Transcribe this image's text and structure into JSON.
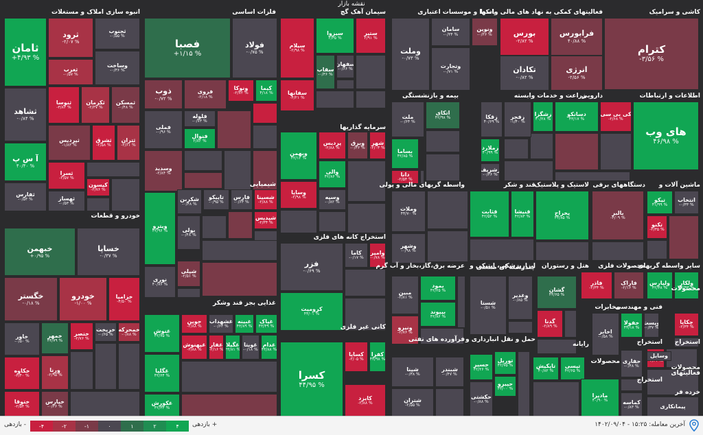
{
  "map_title": "نقشه بازار",
  "sectors": {
    "kashi": "کاشی و سرامیک",
    "faaliat_malli": "فعالیتهای کمکی به نهاد های مالی واسط",
    "bankha": "بانکها و موسسات اعتباری",
    "siman": "سیمان آهک گچ",
    "felezat": "فلزات اساسی",
    "anbouh": "انبوه سازی املاک و مستغلات",
    "bime": "بیمه و بازنشستگی",
    "zeraat": "زراعت و خدمات وابسته",
    "daroei": "دارویی",
    "ettelaat": "اطلاعات و ارتباطات",
    "sarmaye": "سرمایه گذاریها",
    "vaseteh": "واسطه گریهای مالی و پولی",
    "ghand": "قند و شکر",
    "lastik": "لاستیک و پلاستیک",
    "dastgah": "دستگاههای برقی",
    "mashinalat": "ماشین آلات و",
    "shimiaei": "شیمیایی",
    "khodro": "خودرو و قطعات",
    "estekhraj_kane": "استخراج کانه های فلزی",
    "arze_bargh": "عرضه برق،گاز،بخار و آب گرم",
    "abzar": "ابزارپزشکی، اپتیکی و",
    "chandreshte": "چندرشته ای صنعتی",
    "hotel": "هتل و رستوران",
    "mahsoulat_felezi": "محصولات فلزی",
    "saier_vaseteh": "سایر واسطه گریهای",
    "ghazaei": "غذایی بجز قند وشکر",
    "mokhaberat": "مخابرات",
    "fanni": "فنی و مهندسی",
    "mahsoulat": "محصولات",
    "kani_gheir": "کانی غیر فلزی",
    "faravarde": "فرآورده های نفتی",
    "haml": "حمل و نقل انبارداری و",
    "rayane": "رایانه",
    "mahsoulat2": "محصولات",
    "estekhraj1": "استخراج",
    "estekhraj2": "استخراج",
    "estekhraj3": "استخراج",
    "faaliatha": "فعالیتهای",
    "khordeh": "خرده فر",
    "mahsoulat3": "محصولات"
  },
  "tiles": {
    "ketram": {
      "sym": "کترام",
      "pct": "-۳/۵۶ %"
    },
    "faraboors": {
      "sym": "فرابورس",
      "pct": "۴۰/۸۸ %"
    },
    "boors": {
      "sym": "بورس",
      "pct": "-۲/۸۲ %"
    },
    "anrezi": {
      "sym": "انرژی",
      "pct": "-۲/۵۶ %"
    },
    "tekadan": {
      "sym": "تکادان",
      "pct": "-۰/۸۲ %"
    },
    "vanovin": {
      "sym": "ونوین",
      "pct": "-۰/۳۶ %"
    },
    "saman": {
      "sym": "سامان",
      "pct": "-۰/۳۴ %"
    },
    "vamellat": {
      "sym": "وملت",
      "pct": "-۰/۷۳ %"
    },
    "vtejarat": {
      "sym": "وتجارت",
      "pct": "-۰/۷۱ %"
    },
    "saniir": {
      "sym": "ستیر",
      "pct": "۲/۹۱ %"
    },
    "sizza": {
      "sym": "سیزوا",
      "pct": "۲/۳۵ %"
    },
    "sipam": {
      "sym": "سیلام",
      "pct": "-۲/۹۸ %"
    },
    "saghar": {
      "sym": "سقاب",
      "pct": "-۰/۳۶ %"
    },
    "sefahan": {
      "sym": "سفهان",
      "pct": "-۰/۶۶ %"
    },
    "sefanha": {
      "sym": "سفانها",
      "pct": "-۴/۲۱ %"
    },
    "fesapa": {
      "sym": "فصبا",
      "pct": "+۱/۱۵ %"
    },
    "foolad": {
      "sym": "فولاد",
      "pct": "-۰/۷۵ %"
    },
    "zob": {
      "sym": "ذوب",
      "pct": "-۰/۷۲ %"
    },
    "foroozi": {
      "sym": "فروی",
      "pct": "-۲/۱۸ %"
    },
    "vanoka": {
      "sym": "ونوکا",
      "pct": "-۲/۷۲ %"
    },
    "kima": {
      "sym": "کیما",
      "pct": "۴/۱۸ %"
    },
    "flooleh": {
      "sym": "فلوله",
      "pct": "-۰/۷۳ %"
    },
    "fooolal": {
      "sym": "فنوال",
      "pct": "۲/۸۲ %"
    },
    "felezi": {
      "sym": "فملی",
      "pct": "-۰/۹۶ %"
    },
    "vasdid": {
      "sym": "وسدید",
      "pct": "-۲/۸۴ %"
    },
    "saman2": {
      "sym": "ثامان",
      "pct": "+۴/۹۳ %"
    },
    "tarood": {
      "sym": "ثرود",
      "pct": "-۲/۰۷ %"
    },
    "tajnoob": {
      "sym": "ثجنوب",
      "pct": "-۰/۵۵ %"
    },
    "taghrab": {
      "sym": "ثغرب",
      "pct": "-۰/۵۷ %"
    },
    "vasakht": {
      "sym": "وساخت",
      "pct": "-۰/۳۶ %"
    },
    "teshahd": {
      "sym": "ثشاهد",
      "pct": "-۰/۸۴ %"
    },
    "tanosa": {
      "sym": "ثنوسا",
      "pct": "-۳/۸۳ %"
    },
    "tkerman": {
      "sym": "ثکرمان",
      "pct": "-۲/۳۷ %"
    },
    "tamaskan": {
      "sym": "ثمسکن",
      "pct": "-۰/۴۸ %"
    },
    "tpardis": {
      "sym": "ثپردیس",
      "pct": "-۱/۸۳ %"
    },
    "tashragh": {
      "sym": "ثشرق",
      "pct": "-۲/۵۸ %"
    },
    "tetran": {
      "sym": "ثتران",
      "pct": "-۲/۶۱ %"
    },
    "asp": {
      "sym": "آ س پ",
      "pct": "۴۰/۴۰ %"
    },
    "tesra": {
      "sym": "ثسرا",
      "pct": "-۲/۵۷ %"
    },
    "kisvan": {
      "sym": "کیسون",
      "pct": "-۲/۷۶ %"
    },
    "tafars": {
      "sym": "ثفارس",
      "pct": "-۰/۵۳ %"
    },
    "tehasaz": {
      "sym": "ثهساز",
      "pct": "-۰/۵۳ %"
    },
    "khbahman": {
      "sym": "خبهمن",
      "pct": "+۰/۹۵ %"
    },
    "khsapa": {
      "sym": "خساپا",
      "pct": "-۰/۳۷ %"
    },
    "khgostar": {
      "sym": "خگستر",
      "pct": "-۰/۱۸ %"
    },
    "khodro": {
      "sym": "خودرو",
      "pct": "-۱/۰۰ %"
    },
    "khzamia": {
      "sym": "خزامیا",
      "pct": "-۴/۵۰ %"
    },
    "khavar": {
      "sym": "خاور",
      "pct": "-۰/۵۰ %"
    },
    "khamhr": {
      "sym": "خمهر",
      "pct": "۴۳/۷۹ %"
    },
    "khatsar": {
      "sym": "ختصر",
      "pct": "-۲/۷۶ %"
    },
    "kharikht": {
      "sym": "خریخت",
      "pct": "-۰/۶۵ %"
    },
    "khamhreh": {
      "sym": "خمحرکه",
      "pct": "-۰/۸۸ %"
    },
    "khakoosh": {
      "sym": "خکاوه",
      "pct": "-۳/۴۰ %"
    },
    "vrena": {
      "sym": "ورنا",
      "pct": "-۲/۹۵ %"
    },
    "khtooghi": {
      "sym": "ختوقا",
      "pct": "-۲/۵۴ %"
    },
    "khpars": {
      "sym": "خپارس",
      "pct": "-۰/۳۶ %"
    },
    "malat": {
      "sym": "ملت",
      "pct": "-۰/۶۴ %"
    },
    "atkai": {
      "sym": "اتکای",
      "pct": "۴۲/۹۸ %"
    },
    "basma": {
      "sym": "بساما",
      "pct": "۴۲/۸۵ %"
    },
    "dana": {
      "sym": "دانا",
      "pct": "-۲/۵۴ %"
    },
    "zagaka": {
      "sym": "زقکا",
      "pct": "۴۰/۶۹ %"
    },
    "zanjir": {
      "sym": "زفجر",
      "pct": "-۱/۴۰ %"
    },
    "zshagha": {
      "sym": "زشگزا",
      "pct": "۴۰/۲۸ %"
    },
    "zmalard": {
      "sym": "زملارد",
      "pct": "۴۰/۹۹ %"
    },
    "zeshrin": {
      "sym": "زشریف",
      "pct": "-۰/۳۶ %"
    },
    "dasnaku": {
      "sym": "دسانکو",
      "pct": "۴۳/۱۷ %"
    },
    "kibibi": {
      "sym": "کی بی سی",
      "pct": "-۲/۶۸ %"
    },
    "hayweb": {
      "sym": "های وب",
      "pct": "۴۶/۹۸ %"
    },
    "vebahman": {
      "sym": "وبهمن",
      "pct": "۴۲/۱۲ %"
    },
    "vpardis": {
      "sym": "پردیس",
      "pct": "-۲/۸۸ %"
    },
    "vabargh": {
      "sym": "وبرق",
      "pct": "-۰/۳۶ %"
    },
    "shahr": {
      "sym": "شهر",
      "pct": "-۲/۰۳ %"
    },
    "vali": {
      "sym": "والی",
      "pct": "۴۲/۸۶ %"
    },
    "vsina": {
      "sym": "وسپه",
      "pct": "-۰/۸۲ %"
    },
    "vapna": {
      "sym": "وساپا",
      "pct": "-۲/۹۸ %"
    },
    "vamlat2": {
      "sym": "وملات",
      "pct": "۴۴/۷۰ %"
    },
    "voshr": {
      "sym": "وشهر",
      "pct": "-۰/۹۸ %"
    },
    "ghasatab": {
      "sym": "قثابت",
      "pct": "۴۲/۵۲ %"
    },
    "ghanisha": {
      "sym": "قنیشا",
      "pct": "۴۲/۸۳ %"
    },
    "pkherazh": {
      "sym": "پخراج",
      "pct": "۴۳/۸۵ %"
    },
    "baleir": {
      "sym": "بالبر",
      "pct": "-۴/۰۹ %"
    },
    "butoko": {
      "sym": "تیکو",
      "pct": "۴۱/۹۹ %"
    },
    "entekhab": {
      "sym": "انتخاب",
      "pct": "-۰/۳۳ %"
    },
    "tekno": {
      "sym": "تکنو",
      "pct": "-۲/۳۵ %"
    },
    "shekaran": {
      "sym": "شکربن",
      "pct": "-۰/۴۸ %"
    },
    "tapiko": {
      "sym": "تاپیکو",
      "pct": "-۰/۹۵ %"
    },
    "fars": {
      "sym": "فارس",
      "pct": "-۰/۶۳ %"
    },
    "shasiba": {
      "sym": "شسینا",
      "pct": "-۲/۸۸ %"
    },
    "shapdis": {
      "sym": "شپدیس",
      "pct": "-۲/۳۴ %"
    },
    "vitro": {
      "sym": "ویترو",
      "pct": "۴۲/۹۶ %"
    },
    "booli": {
      "sym": "بولی",
      "pct": "-۰/۴۸ %"
    },
    "noori": {
      "sym": "نوری",
      "pct": "۴۰/۷۶ %"
    },
    "shali": {
      "sym": "شپلی",
      "pct": "-۲/۵۱ %"
    },
    "fazar": {
      "sym": "فزر",
      "pct": "-۰/۶۹ %"
    },
    "kama": {
      "sym": "کاما",
      "pct": "-۰/۱۷ %"
    },
    "vameir": {
      "sym": "وامیر",
      "pct": "-۰/۷۸ %"
    },
    "koromit": {
      "sym": "کرومیت",
      "pct": "۴۴/۰۱ %"
    },
    "mbin": {
      "sym": "مبین",
      "pct": "-۲/۸۱ %"
    },
    "bmood": {
      "sym": "بمود",
      "pct": "۴۲/۲۵ %"
    },
    "bipand": {
      "sym": "بیپوند",
      "pct": "۴۲/۸۶ %"
    },
    "vinar": {
      "sym": "ونیرو",
      "pct": "-۲/۷۶ %"
    },
    "shasta": {
      "sym": "شستا",
      "pct": "-۰/۵۱ %"
    },
    "vghadir": {
      "sym": "وغدیر",
      "pct": "-۰/۸۵ %"
    },
    "gashan": {
      "sym": "گشان",
      "pct": "۴۴/۶۵ %"
    },
    "gedna": {
      "sym": "گدنا",
      "pct": "-۲/۸۹ %"
    },
    "faddar": {
      "sym": "فاذر",
      "pct": "-۲/۳۴ %"
    },
    "faraq": {
      "sym": "فاراک",
      "pct": "-۲/۱۶ %"
    },
    "vlepars": {
      "sym": "ولپارس",
      "pct": "۴۲/۴۸ %"
    },
    "velkar": {
      "sym": "ولکار",
      "pct": "۴۲/۹۳ %"
    },
    "ghenoosh": {
      "sym": "غنوش",
      "pct": "۴۲/۷۵ %"
    },
    "ghgela": {
      "sym": "غگلپا",
      "pct": "۴۲/۶۴ %"
    },
    "ghkosta": {
      "sym": "غکورش",
      "pct": "۴۲/۴۳ %"
    },
    "joein": {
      "sym": "جوین",
      "pct": "-۲/۸۸ %"
    },
    "ghshahad": {
      "sym": "غشهداب",
      "pct": "-۰/۶۳ %"
    },
    "ghbena": {
      "sym": "غبینه",
      "pct": "۴۳/۸۹ %"
    },
    "ghpak": {
      "sym": "غپاک",
      "pct": "۴۳/۴۹ %"
    },
    "ghnahesh": {
      "sym": "غپهنوش",
      "pct": "-۳/۸۸ %"
    },
    "ghafar": {
      "sym": "غفار",
      "pct": "-۲/۱۶ %"
    },
    "ghegla": {
      "sym": "غگیلا",
      "pct": "۴۳/۸۱ %"
    },
    "ghobita": {
      "sym": "غویتا",
      "pct": "-۰/۱۸ %"
    },
    "ghadam": {
      "sym": "غدام",
      "pct": "۴۳/۸۸ %"
    },
    "akhabar": {
      "sym": "اخابر",
      "pct": "-۰/۵۸ %"
    },
    "khofola": {
      "sym": "خفولا",
      "pct": "۴۴/۱۸ %"
    },
    "vpes": {
      "sym": "وپست",
      "pct": "-۰/۳۷ %"
    },
    "hafari": {
      "sym": "حفاری",
      "pct": "-۰/۴۸ %"
    },
    "chakapa": {
      "sym": "چکاپا",
      "pct": "-۲/۳۴ %"
    },
    "kegl": {
      "sym": "کگل",
      "pct": "-۲/۲۱ %"
    },
    "kasra": {
      "sym": "کسرا",
      "pct": "۴۴/۹۵ %"
    },
    "kesaba": {
      "sym": "کساپا",
      "pct": "-۲/۰۵ %"
    },
    "kafra": {
      "sym": "کفرا",
      "pct": "۴۳/۹۸ %"
    },
    "kaiz": {
      "sym": "کایزد",
      "pct": "-۲/۸۸ %"
    },
    "shapna": {
      "sym": "شپنا",
      "pct": "-۰/۳۸ %"
    },
    "shabandar": {
      "sym": "شبندر",
      "pct": "-۰/۴۷ %"
    },
    "shatran": {
      "sym": "شتران",
      "pct": "-۲/۵۵ %"
    },
    "hasir": {
      "sym": "حسیر",
      "pct": "۴۲/۲۶ %"
    },
    "toreil": {
      "sym": "توریل",
      "pct": "۴۲/۷۵ %"
    },
    "hakeshti": {
      "sym": "حکشتی",
      "pct": "-۰/۸۸ %"
    },
    "hibro": {
      "sym": "حپیرو",
      "pct": "۴۳/۰۰ %"
    },
    "tapikish": {
      "sym": "تاپکیش",
      "pct": "۴۰/۸۲ %"
    },
    "tpisi": {
      "sym": "تپسی",
      "pct": "۴۲/۶۵ %"
    },
    "madira": {
      "sym": "مادیرا",
      "pct": "۴۰/۹۰ %"
    },
    "kamase": {
      "sym": "کماسه",
      "pct": "-۰/۸۳ %"
    },
    "vsaeil": {
      "sym": "وسایل",
      "pct": ""
    },
    "peimankar": {
      "sym": "پیمانکاری",
      "pct": ""
    }
  },
  "footer": {
    "legend_left": "بازدهی -",
    "legend_right": "بازدهی +",
    "legend_values": [
      "-۴",
      "-۲",
      "-۱",
      "۰",
      "۱",
      "۲",
      "۴"
    ],
    "legend_colors": [
      "#c8203f",
      "#a83346",
      "#7a3a48",
      "#4b4751",
      "#2f6e4c",
      "#1f8d52",
      "#11a653"
    ],
    "last_trade": "آخرین معامله: ۱۵:۲۵ - ۱۴۰۲/۰۹/۰۴"
  },
  "colors": {
    "strong_red": "#c8203f",
    "red": "#a83346",
    "dark_red": "#7a3a48",
    "neutral": "#4b4751",
    "dark_green": "#2f6e4c",
    "green": "#1f8d52",
    "strong_green": "#11a653",
    "background": "#2b2b2d"
  }
}
